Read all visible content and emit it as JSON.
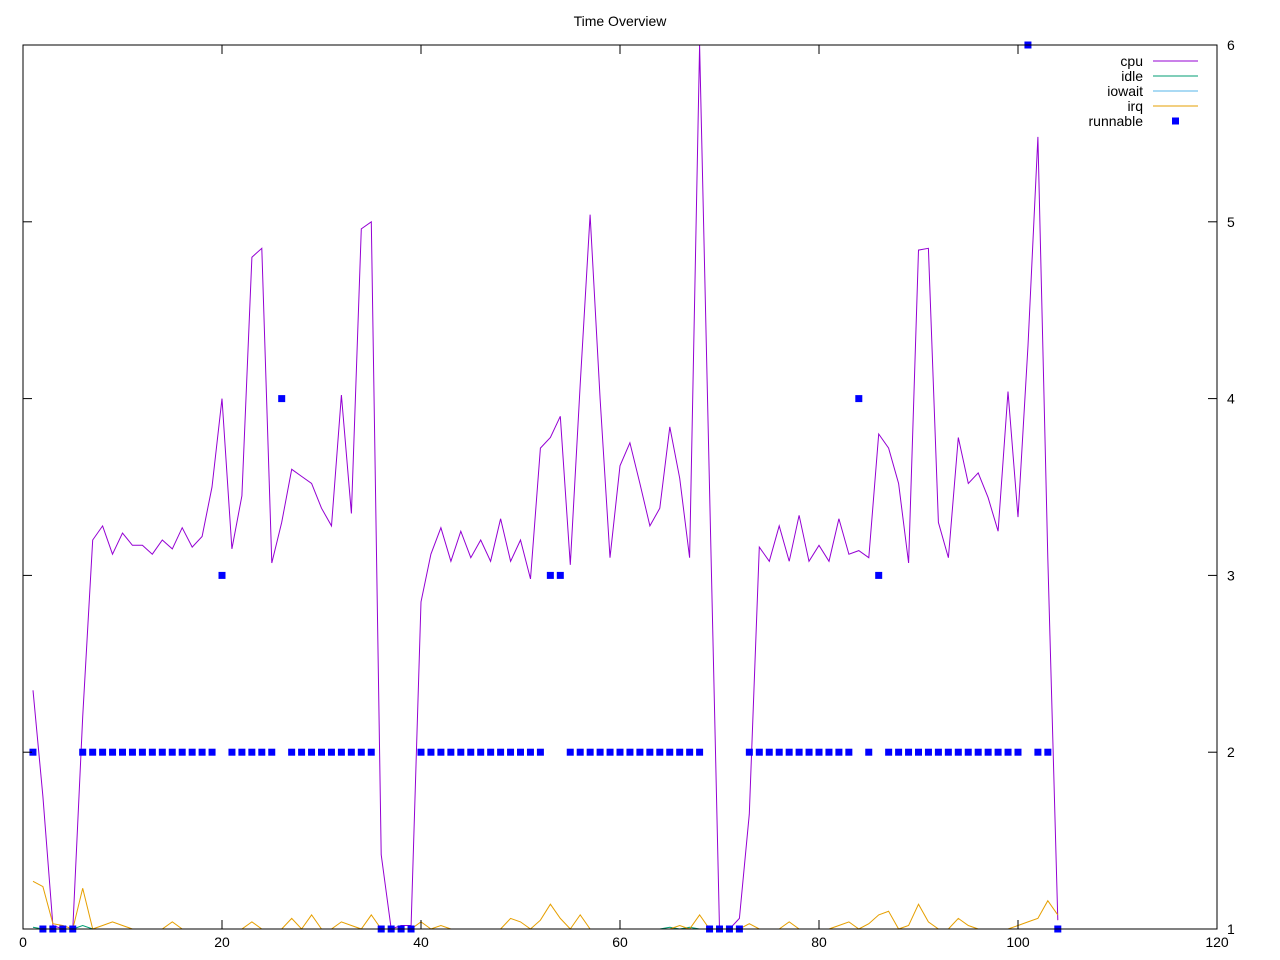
{
  "chart_data": {
    "type": "line",
    "title": "Time Overview",
    "xlabel": "",
    "ylabel": "",
    "xlim": [
      0,
      120
    ],
    "ylim": [
      1,
      6
    ],
    "x_ticks": [
      0,
      20,
      40,
      60,
      80,
      100,
      120
    ],
    "y_ticks": [
      1,
      2,
      3,
      4,
      5,
      6
    ],
    "y_axis_side": "right",
    "grid": false,
    "legend_position": "top-right",
    "series": [
      {
        "name": "cpu",
        "type": "line",
        "color": "#9400d3",
        "x": [
          1,
          2,
          3,
          4,
          5,
          6,
          7,
          8,
          9,
          10,
          11,
          12,
          13,
          14,
          15,
          16,
          17,
          18,
          19,
          20,
          21,
          22,
          23,
          24,
          25,
          26,
          27,
          28,
          29,
          30,
          31,
          32,
          33,
          34,
          35,
          36,
          37,
          38,
          39,
          40,
          41,
          42,
          43,
          44,
          45,
          46,
          47,
          48,
          49,
          50,
          51,
          52,
          53,
          54,
          55,
          56,
          57,
          58,
          59,
          60,
          61,
          62,
          63,
          64,
          65,
          66,
          67,
          68,
          69,
          70,
          71,
          72,
          73,
          74,
          75,
          76,
          77,
          78,
          79,
          80,
          81,
          82,
          83,
          84,
          85,
          86,
          87,
          88,
          89,
          90,
          91,
          92,
          93,
          94,
          95,
          96,
          97,
          98,
          99,
          100,
          101,
          102,
          103,
          104
        ],
        "values": [
          2.35,
          1.75,
          1.02,
          1.0,
          1.0,
          2.2,
          3.2,
          3.28,
          3.12,
          3.24,
          3.17,
          3.17,
          3.12,
          3.2,
          3.15,
          3.27,
          3.16,
          3.22,
          3.5,
          4.0,
          3.15,
          3.45,
          4.8,
          4.85,
          3.07,
          3.3,
          3.6,
          3.56,
          3.52,
          3.38,
          3.28,
          4.02,
          3.35,
          4.96,
          5.0,
          1.42,
          1.0,
          1.02,
          1.02,
          2.85,
          3.12,
          3.27,
          3.08,
          3.25,
          3.1,
          3.2,
          3.08,
          3.32,
          3.08,
          3.2,
          2.98,
          3.72,
          3.78,
          3.9,
          3.06,
          4.08,
          5.04,
          4.0,
          3.1,
          3.62,
          3.75,
          3.52,
          3.28,
          3.38,
          3.84,
          3.55,
          3.1,
          6.0,
          3.5,
          1.0,
          1.0,
          1.06,
          1.65,
          3.16,
          3.08,
          3.28,
          3.08,
          3.34,
          3.08,
          3.17,
          3.08,
          3.32,
          3.12,
          3.14,
          3.1,
          3.8,
          3.72,
          3.52,
          3.07,
          4.84,
          4.85,
          3.3,
          3.1,
          3.78,
          3.52,
          3.58,
          3.44,
          3.25,
          4.04,
          3.33,
          4.3,
          5.48,
          3.1,
          1.05
        ]
      },
      {
        "name": "idle",
        "type": "line",
        "color": "#009e73",
        "x": [
          1,
          2,
          3,
          4,
          5,
          6,
          7,
          8,
          9,
          10,
          20,
          40,
          60,
          64,
          65,
          66,
          67,
          68,
          70,
          80,
          90,
          100,
          104
        ],
        "values": [
          1.01,
          1.0,
          1.0,
          1.0,
          1.0,
          1.02,
          1.0,
          1.0,
          1.0,
          1.0,
          1.0,
          1.0,
          1.0,
          1.0,
          1.01,
          1.0,
          1.01,
          1.0,
          1.0,
          1.0,
          1.0,
          1.0,
          1.0
        ]
      },
      {
        "name": "iowait",
        "type": "line",
        "color": "#56b4e9",
        "x": [
          1,
          20,
          40,
          60,
          80,
          100,
          104
        ],
        "values": [
          1.0,
          1.0,
          1.0,
          1.0,
          1.0,
          1.0,
          1.0
        ]
      },
      {
        "name": "irq",
        "type": "line",
        "color": "#e69f00",
        "x": [
          1,
          2,
          3,
          4,
          5,
          6,
          7,
          8,
          9,
          10,
          11,
          12,
          13,
          14,
          15,
          16,
          17,
          18,
          19,
          20,
          21,
          22,
          23,
          24,
          25,
          26,
          27,
          28,
          29,
          30,
          31,
          32,
          33,
          34,
          35,
          36,
          37,
          38,
          39,
          40,
          41,
          42,
          43,
          44,
          45,
          46,
          47,
          48,
          49,
          50,
          51,
          52,
          53,
          54,
          55,
          56,
          57,
          58,
          59,
          60,
          61,
          62,
          63,
          64,
          65,
          66,
          67,
          68,
          69,
          70,
          71,
          72,
          73,
          74,
          75,
          76,
          77,
          78,
          79,
          80,
          81,
          82,
          83,
          84,
          85,
          86,
          87,
          88,
          89,
          90,
          91,
          92,
          93,
          94,
          95,
          96,
          97,
          98,
          99,
          100,
          101,
          102,
          103,
          104
        ],
        "values": [
          1.27,
          1.24,
          1.03,
          1.02,
          1.0,
          1.23,
          1.0,
          1.02,
          1.04,
          1.02,
          1.0,
          1.0,
          1.0,
          1.0,
          1.04,
          1.0,
          1.0,
          1.0,
          1.0,
          1.0,
          1.0,
          1.0,
          1.04,
          1.0,
          1.0,
          1.0,
          1.06,
          1.0,
          1.08,
          1.0,
          1.0,
          1.04,
          1.02,
          1.0,
          1.08,
          1.0,
          1.0,
          1.0,
          1.0,
          1.04,
          1.0,
          1.02,
          1.0,
          1.0,
          1.0,
          1.0,
          1.0,
          1.0,
          1.06,
          1.04,
          1.0,
          1.05,
          1.14,
          1.06,
          1.0,
          1.08,
          1.0,
          1.0,
          1.0,
          1.0,
          1.0,
          1.0,
          1.0,
          1.0,
          1.0,
          1.02,
          1.0,
          1.08,
          1.0,
          1.0,
          1.0,
          1.0,
          1.03,
          1.0,
          1.0,
          1.0,
          1.04,
          1.0,
          1.0,
          1.0,
          1.0,
          1.02,
          1.04,
          1.0,
          1.03,
          1.08,
          1.1,
          1.0,
          1.02,
          1.14,
          1.04,
          1.0,
          1.0,
          1.06,
          1.02,
          1.0,
          1.0,
          1.0,
          1.0,
          1.02,
          1.04,
          1.06,
          1.16,
          1.08
        ]
      },
      {
        "name": "runnable",
        "type": "scatter",
        "color": "#0000ff",
        "x": [
          1,
          2,
          3,
          4,
          5,
          6,
          7,
          8,
          9,
          10,
          11,
          12,
          13,
          14,
          15,
          16,
          17,
          18,
          19,
          20,
          21,
          22,
          23,
          24,
          25,
          26,
          27,
          28,
          29,
          30,
          31,
          32,
          33,
          34,
          35,
          36,
          37,
          38,
          39,
          40,
          41,
          42,
          43,
          44,
          45,
          46,
          47,
          48,
          49,
          50,
          51,
          52,
          53,
          54,
          55,
          56,
          57,
          58,
          59,
          60,
          61,
          62,
          63,
          64,
          65,
          66,
          67,
          68,
          69,
          70,
          71,
          72,
          73,
          74,
          75,
          76,
          77,
          78,
          79,
          80,
          81,
          82,
          83,
          84,
          85,
          86,
          87,
          88,
          89,
          90,
          91,
          92,
          93,
          94,
          95,
          96,
          97,
          98,
          99,
          100,
          101,
          102,
          103,
          104
        ],
        "values": [
          2,
          1,
          1,
          1,
          1,
          2,
          2,
          2,
          2,
          2,
          2,
          2,
          2,
          2,
          2,
          2,
          2,
          2,
          2,
          3,
          2,
          2,
          2,
          2,
          2,
          4,
          2,
          2,
          2,
          2,
          2,
          2,
          2,
          2,
          2,
          1,
          1,
          1,
          1,
          2,
          2,
          2,
          2,
          2,
          2,
          2,
          2,
          2,
          2,
          2,
          2,
          2,
          3,
          3,
          2,
          2,
          2,
          2,
          2,
          2,
          2,
          2,
          2,
          2,
          2,
          2,
          2,
          2,
          1,
          1,
          1,
          1,
          2,
          2,
          2,
          2,
          2,
          2,
          2,
          2,
          2,
          2,
          2,
          4,
          2,
          3,
          2,
          2,
          2,
          2,
          2,
          2,
          2,
          2,
          2,
          2,
          2,
          2,
          2,
          2,
          6,
          2,
          2,
          1
        ]
      }
    ]
  }
}
